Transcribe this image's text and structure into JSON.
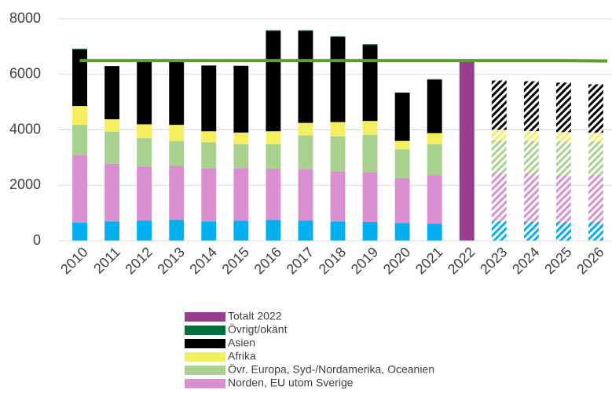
{
  "chart_data": {
    "type": "stacked_bar",
    "categories": [
      "2010",
      "2011",
      "2012",
      "2013",
      "2014",
      "2015",
      "2016",
      "2017",
      "2018",
      "2019",
      "2020",
      "2021",
      "2022",
      "2023",
      "2024",
      "2025",
      "2026"
    ],
    "series": [
      {
        "color": "#00b0f0",
        "values": [
          650,
          700,
          730,
          750,
          700,
          720,
          750,
          730,
          700,
          680,
          640,
          620,
          null,
          700,
          680,
          680,
          680
        ]
      },
      {
        "name": "Norden, EU utom Sverige",
        "color": "#d98fd0",
        "values": [
          2430,
          2080,
          1950,
          1950,
          1920,
          1900,
          1850,
          1850,
          1800,
          1780,
          1620,
          1740,
          null,
          1750,
          1750,
          1700,
          1700
        ]
      },
      {
        "name": "Övr. Europa, Syd-/Nordamerika, Oceanien",
        "color": "#a9d18e",
        "values": [
          1100,
          1150,
          1020,
          900,
          930,
          860,
          880,
          1220,
          1260,
          1360,
          1040,
          1120,
          null,
          1170,
          1170,
          1200,
          1200
        ]
      },
      {
        "name": "Afrika",
        "color": "#f5ee5e",
        "values": [
          680,
          450,
          500,
          580,
          400,
          420,
          470,
          450,
          520,
          500,
          300,
          400,
          null,
          380,
          360,
          340,
          320
        ]
      },
      {
        "name": "Asien",
        "color": "#000000",
        "values": [
          2040,
          1920,
          2250,
          2270,
          2370,
          2410,
          3610,
          3310,
          3070,
          2740,
          1740,
          1920,
          null,
          1780,
          1790,
          1780,
          1740
        ]
      },
      {
        "name": "Övrigt/okänt",
        "color": "#00703c",
        "values": [
          20,
          0,
          0,
          0,
          0,
          0,
          30,
          30,
          20,
          30,
          0,
          30,
          null,
          0,
          0,
          0,
          0
        ]
      },
      {
        "name": "Totalt 2022",
        "color": "#993e8e",
        "values": [
          null,
          null,
          null,
          null,
          null,
          null,
          null,
          null,
          null,
          null,
          null,
          null,
          6500,
          null,
          null,
          null,
          null
        ]
      }
    ],
    "line": {
      "color": "#5aa02c",
      "values": [
        6500,
        6500,
        6500,
        6500,
        6500,
        6500,
        6500,
        6500,
        6500,
        6500,
        6500,
        6500,
        6500,
        6500,
        6500,
        6500,
        6480
      ]
    },
    "hatch_start": 13,
    "ylim": [
      0,
      8000
    ],
    "yticks": [
      0,
      2000,
      4000,
      6000,
      8000
    ],
    "grid": true,
    "legend": "bottom"
  }
}
